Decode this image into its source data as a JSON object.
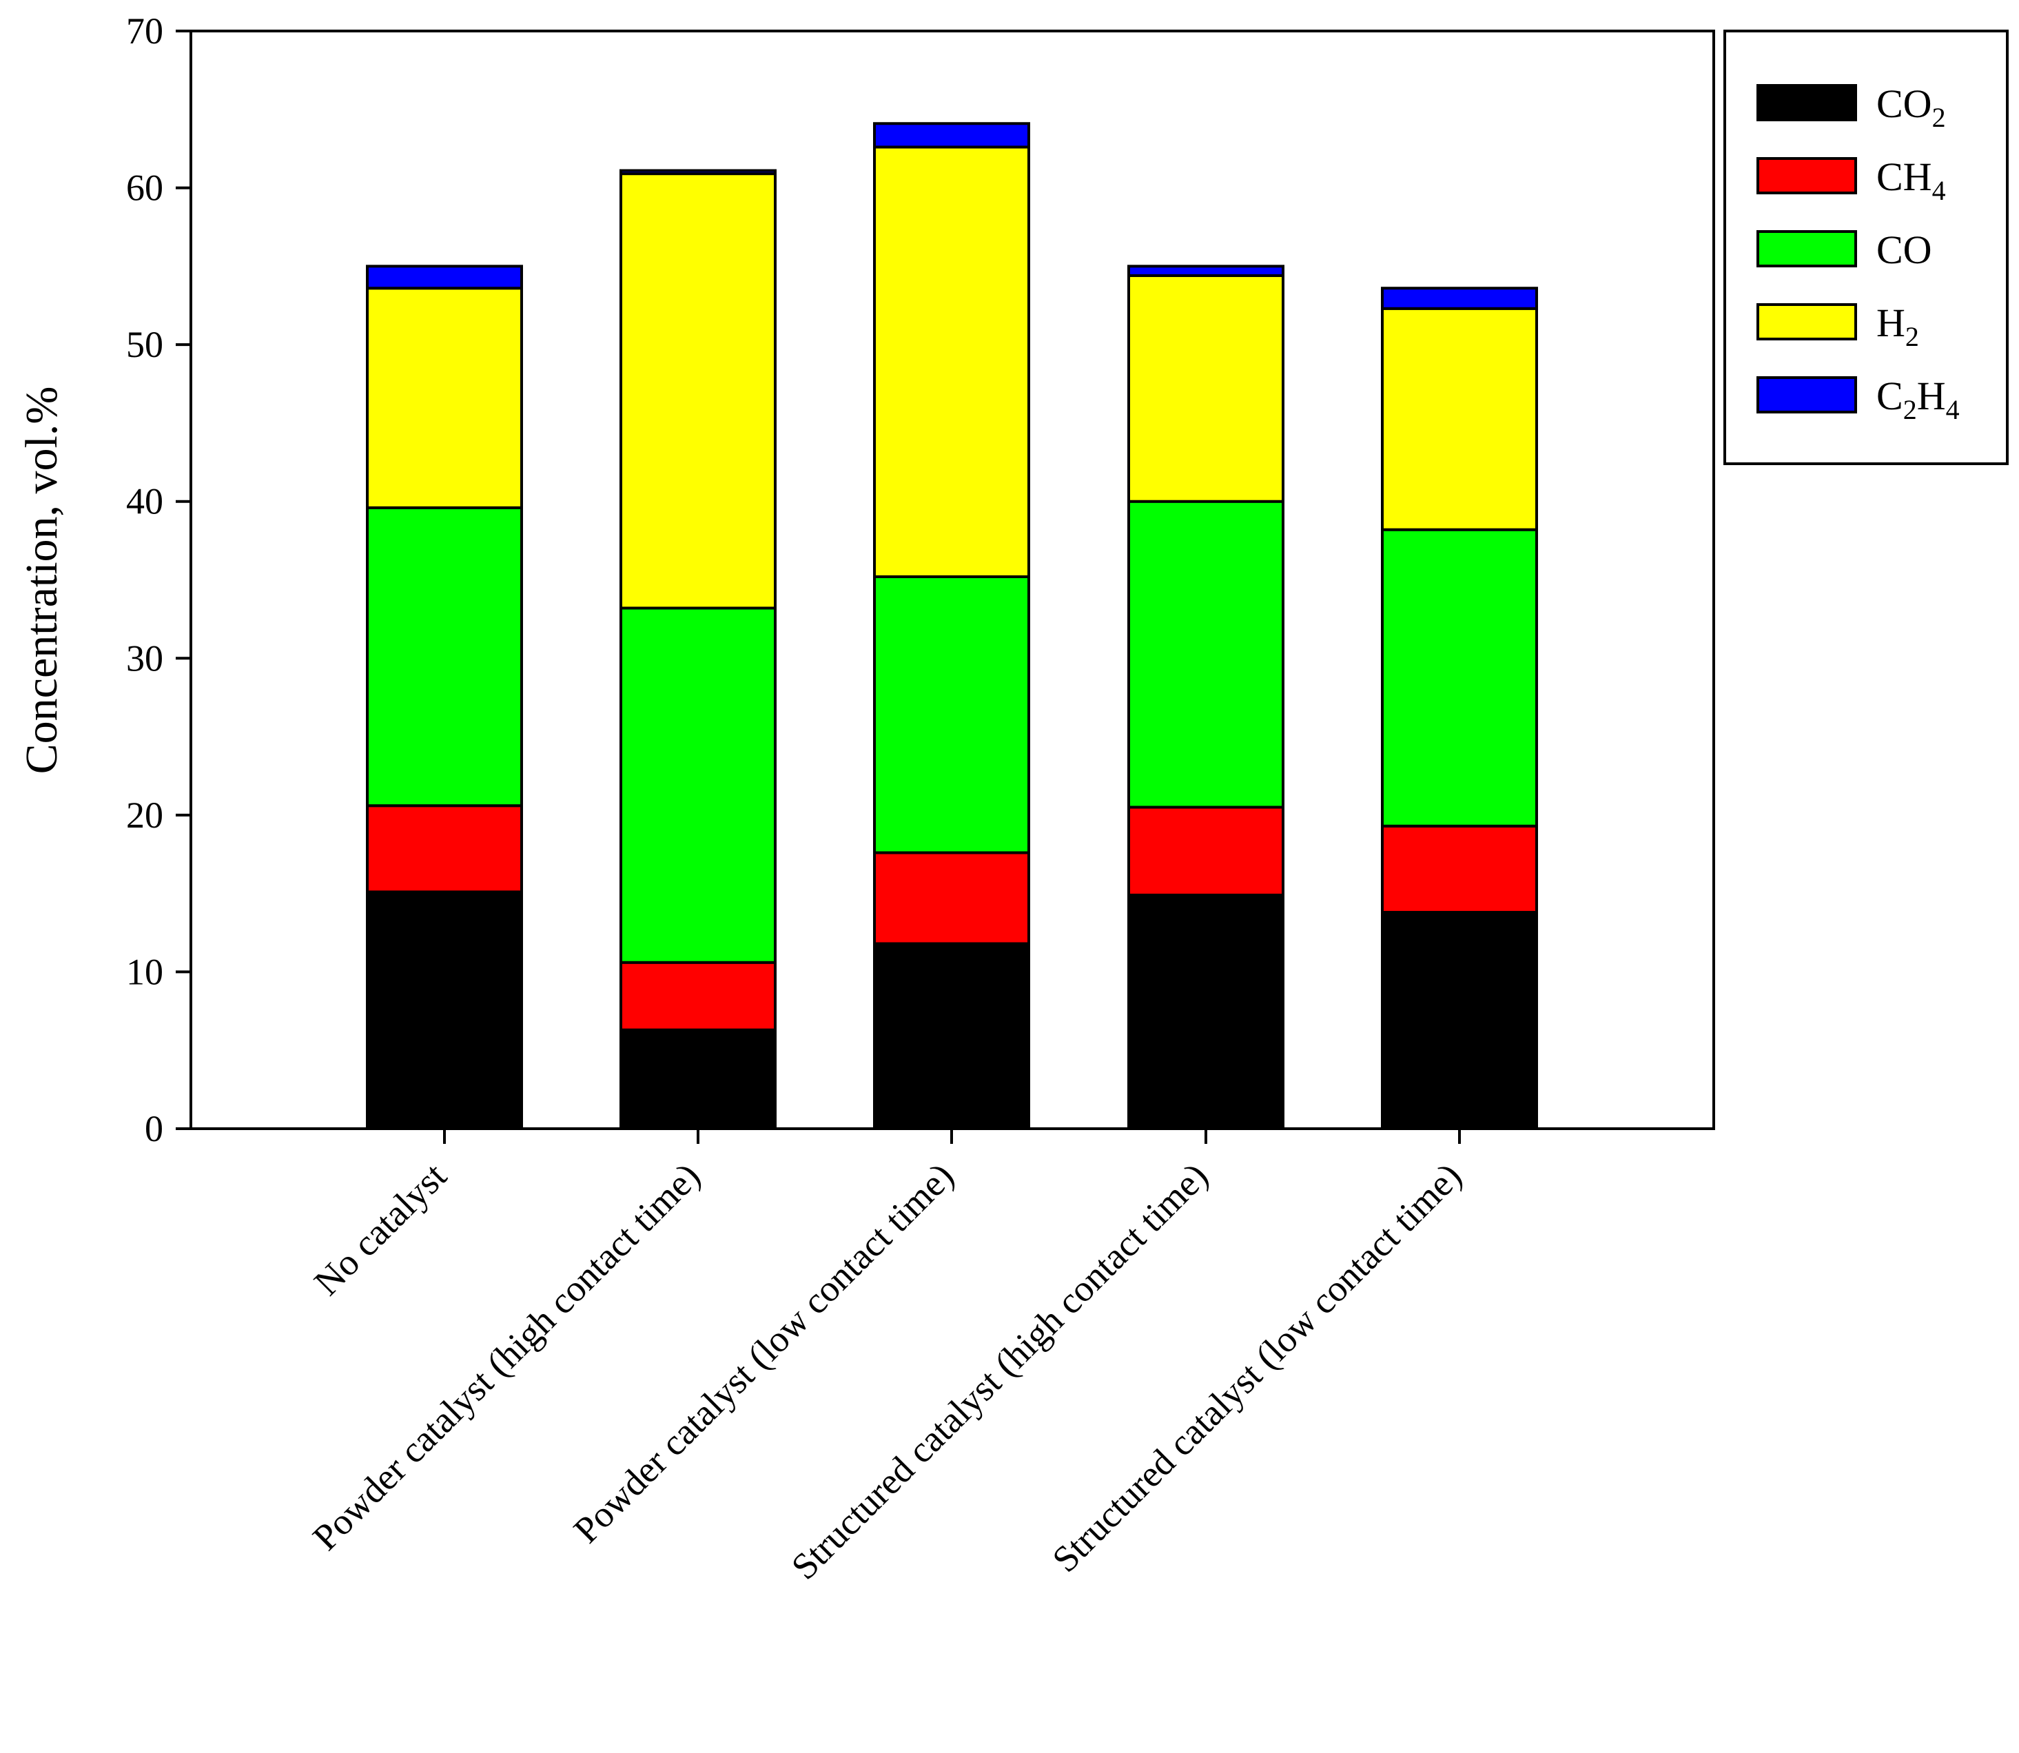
{
  "chart_data": {
    "type": "bar",
    "stacked": true,
    "title": "",
    "xlabel": "",
    "ylabel": "Concentration, vol.%",
    "ylim": [
      0,
      70
    ],
    "yticks": [
      0,
      10,
      20,
      30,
      40,
      50,
      60,
      70
    ],
    "grid": false,
    "legend_position": "top-right",
    "categories": [
      "No catalyst",
      "Powder catalyst (high contact time)",
      "Powder catalyst (low contact time)",
      "Structured catalyst (high contact time)",
      "Structured catalyst (low contact time)"
    ],
    "series": [
      {
        "name": "CO2",
        "label_main": "CO",
        "label_sub": "2",
        "color": "#000000",
        "values": [
          15.1,
          6.3,
          11.8,
          14.9,
          13.8
        ]
      },
      {
        "name": "CH4",
        "label_main": "CH",
        "label_sub": "4",
        "color": "#ff0000",
        "values": [
          5.5,
          4.3,
          5.8,
          5.6,
          5.5
        ]
      },
      {
        "name": "CO",
        "label_main": "CO",
        "label_sub": "",
        "color": "#00ff00",
        "values": [
          19.0,
          22.6,
          17.6,
          19.5,
          18.9
        ]
      },
      {
        "name": "H2",
        "label_main": "H",
        "label_sub": "2",
        "color": "#ffff00",
        "values": [
          14.0,
          27.7,
          27.4,
          14.4,
          14.1
        ]
      },
      {
        "name": "C2H4",
        "label_main": "C",
        "label_sub": "2",
        "label_main2": "H",
        "label_sub2": "4",
        "color": "#0000ff",
        "values": [
          1.4,
          0.2,
          1.5,
          0.6,
          1.3
        ]
      }
    ]
  }
}
